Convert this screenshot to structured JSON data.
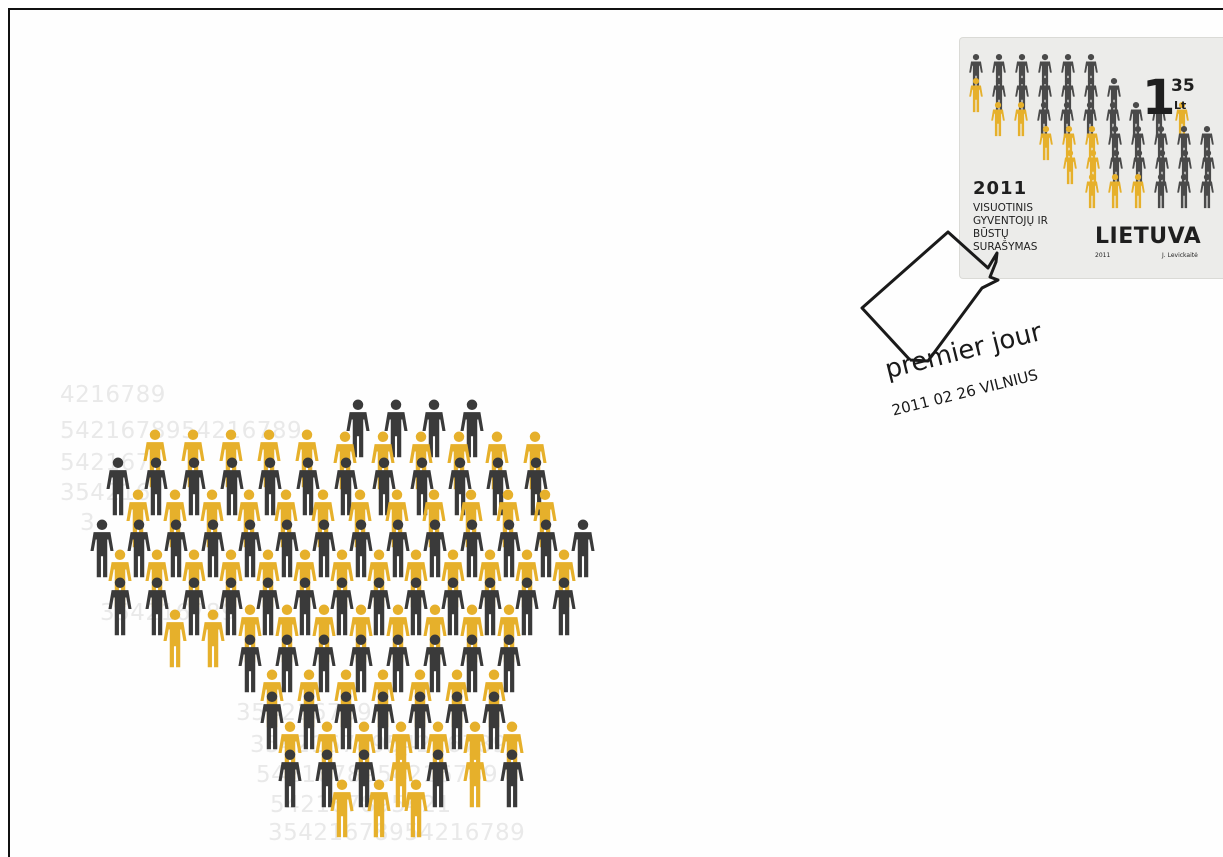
{
  "background_numbers": [
    "4216789",
    "5421678954216789",
    "542167",
    "354216",
    "3",
    "354216789",
    "354216789",
    "35421678954216789",
    "5421678954216789",
    "542167895421",
    "542167895421",
    "35421678954216789"
  ],
  "people_colors": {
    "dark": "#3a3a3a",
    "gold": "#e6b02b"
  },
  "stamp": {
    "year": "2011",
    "line1": "VISUOTINIS",
    "line2": "GYVENTOJŲ IR",
    "line3": "BŪSTŲ",
    "line4": "SURAŠYMAS",
    "value": "1",
    "cents": "35",
    "currency": "Lt",
    "country": "LIETUVA",
    "small_year": "2011",
    "designer": "J. Levickaitė"
  },
  "postmark": {
    "icon": "house-outline-icon",
    "line1": "premier jour",
    "line2": "2011 02 26 VILNIUS"
  }
}
